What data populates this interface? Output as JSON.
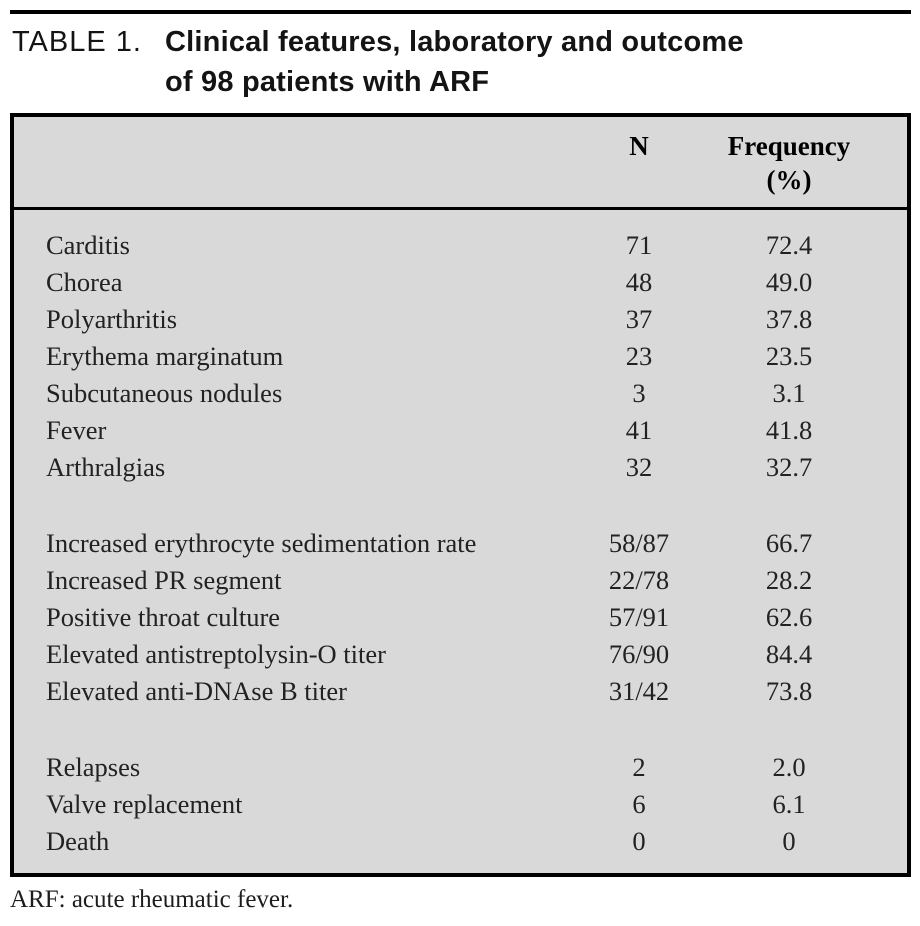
{
  "title": {
    "label": "TABLE 1.",
    "line1": "Clinical features, laboratory and outcome",
    "line2": "of 98 patients with ARF"
  },
  "table": {
    "columns": {
      "feature": "",
      "n": "N",
      "frequency_line1": "Frequency",
      "frequency_line2": "(%)"
    },
    "groups": [
      {
        "name": "clinical-features",
        "rows": [
          {
            "label": "Carditis",
            "n": "71",
            "freq": "72.4"
          },
          {
            "label": "Chorea",
            "n": "48",
            "freq": "49.0"
          },
          {
            "label": "Polyarthritis",
            "n": "37",
            "freq": "37.8"
          },
          {
            "label": "Erythema marginatum",
            "n": "23",
            "freq": "23.5"
          },
          {
            "label": "Subcutaneous nodules",
            "n": "3",
            "freq": "3.1"
          },
          {
            "label": "Fever",
            "n": "41",
            "freq": "41.8"
          },
          {
            "label": "Arthralgias",
            "n": "32",
            "freq": "32.7"
          }
        ]
      },
      {
        "name": "laboratory",
        "rows": [
          {
            "label": "Increased erythrocyte sedimentation rate",
            "n": "58/87",
            "freq": "66.7"
          },
          {
            "label": "Increased PR segment",
            "n": "22/78",
            "freq": "28.2"
          },
          {
            "label": "Positive throat culture",
            "n": "57/91",
            "freq": "62.6"
          },
          {
            "label": "Elevated antistreptolysin-O titer",
            "n": "76/90",
            "freq": "84.4"
          },
          {
            "label": "Elevated anti-DNAse B titer",
            "n": "31/42",
            "freq": "73.8"
          }
        ]
      },
      {
        "name": "outcome",
        "rows": [
          {
            "label": "Relapses",
            "n": "2",
            "freq": "2.0"
          },
          {
            "label": "Valve replacement",
            "n": "6",
            "freq": "6.1"
          },
          {
            "label": "Death",
            "n": "0",
            "freq": "0"
          }
        ]
      }
    ]
  },
  "footnote": "ARF: acute rheumatic fever.",
  "colors": {
    "table_background": "#d9d9d9",
    "border": "#000000",
    "text": "#222222"
  }
}
